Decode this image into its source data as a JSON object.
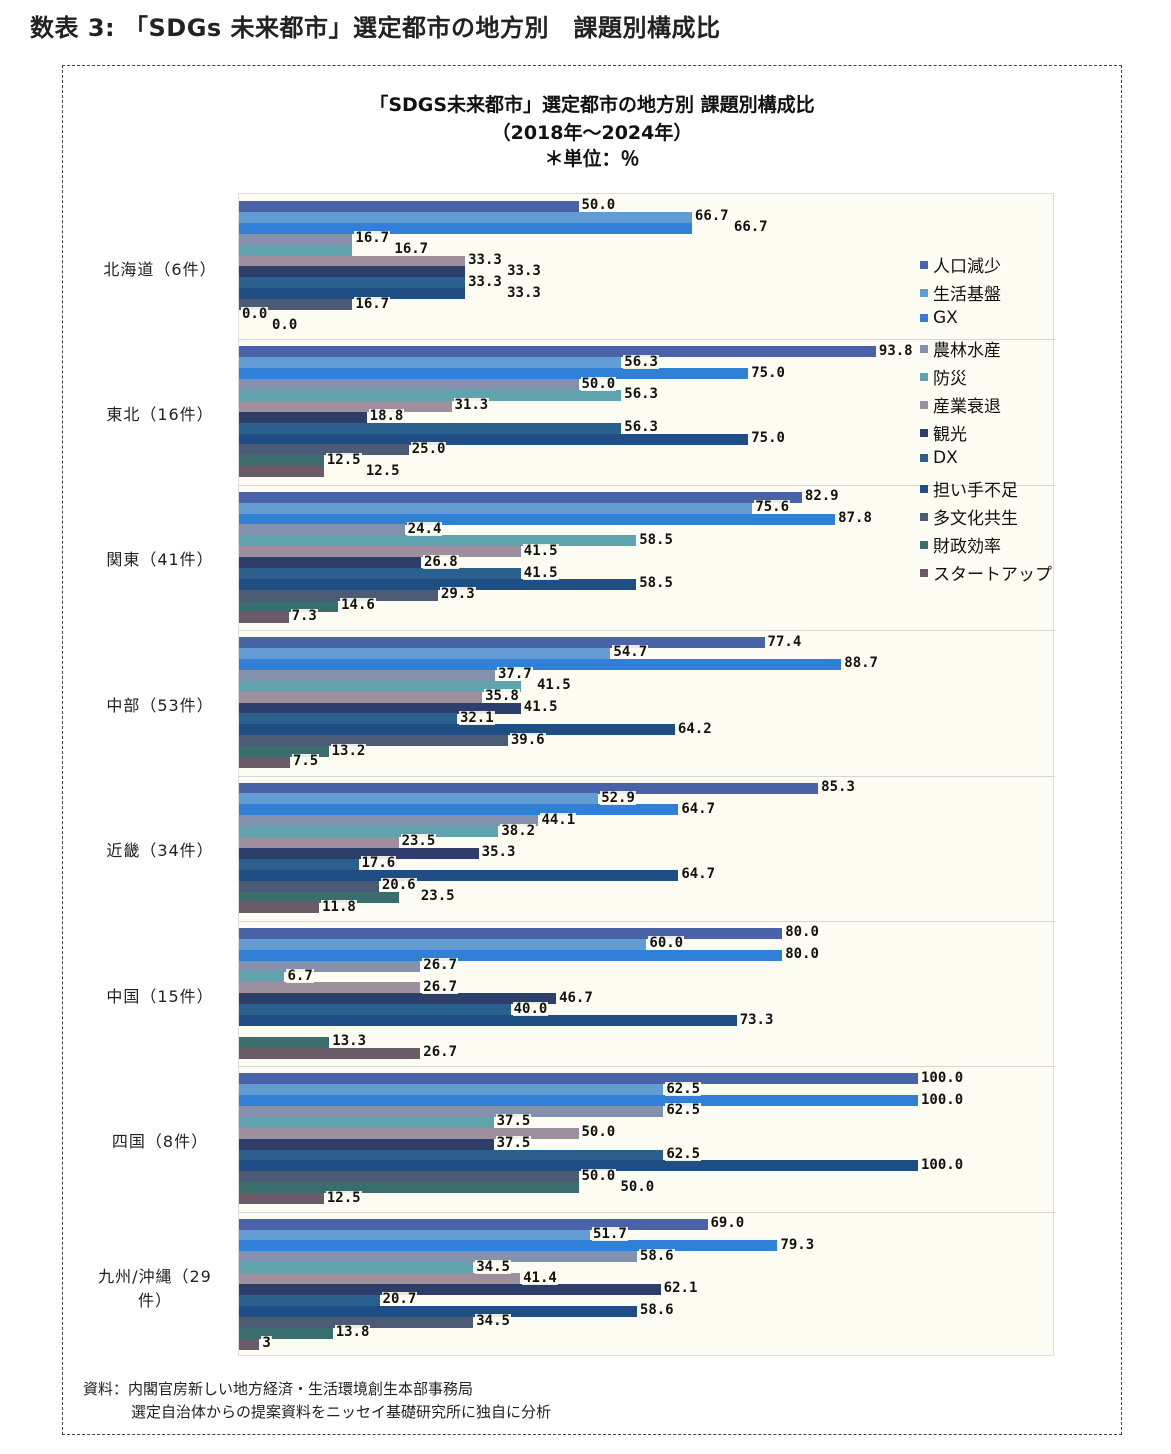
{
  "heading": "数表 3: 「SDGs 未来都市」選定都市の地方別　課題別構成比",
  "source": [
    "資料：内閣官房新しい地方経済・生活環境創生本部事務局",
    "選定自治体からの提案資料をニッセイ基礎研究所に独自に分析"
  ],
  "chart_data": {
    "type": "bar",
    "orientation": "horizontal",
    "title": "「SDGS未来都市」選定都市の地方別 課題別構成比",
    "subtitle": "（2018年～2024年）",
    "unit": "＊単位：％",
    "xlim": [
      0,
      120
    ],
    "legend_position": "right",
    "categories": [
      "北海道（6件）",
      "東北（16件）",
      "関東（41件）",
      "中部（53件）",
      "近畿（34件）",
      "中国（15件）",
      "四国（8件）",
      "九州/沖縄（29件）"
    ],
    "series": [
      {
        "name": "人口減少",
        "color": "#4a62a8",
        "values": [
          50.0,
          93.8,
          82.9,
          77.4,
          85.3,
          80.0,
          100.0,
          69.0
        ]
      },
      {
        "name": "生活基盤",
        "color": "#629cd3",
        "values": [
          66.7,
          56.3,
          75.6,
          54.7,
          52.9,
          60.0,
          62.5,
          51.7
        ]
      },
      {
        "name": "GX",
        "color": "#2f80d6",
        "values": [
          66.7,
          75.0,
          87.8,
          88.7,
          64.7,
          80.0,
          100.0,
          79.3
        ]
      },
      {
        "name": "農林水産",
        "color": "#8291ad",
        "values": [
          16.7,
          50.0,
          24.4,
          37.7,
          44.1,
          26.7,
          62.5,
          58.6
        ]
      },
      {
        "name": "防災",
        "color": "#5ea3ad",
        "values": [
          16.7,
          56.3,
          58.5,
          41.5,
          38.2,
          6.7,
          37.5,
          34.5
        ]
      },
      {
        "name": "産業衰退",
        "color": "#9d8f9e",
        "values": [
          33.3,
          31.3,
          41.5,
          35.8,
          23.5,
          26.7,
          50.0,
          41.4
        ]
      },
      {
        "name": "観光",
        "color": "#2d3e6b",
        "values": [
          33.3,
          18.8,
          26.8,
          41.5,
          35.3,
          46.7,
          37.5,
          62.1
        ]
      },
      {
        "name": "DX",
        "color": "#2b5f8e",
        "values": [
          33.3,
          56.3,
          41.5,
          32.1,
          17.6,
          40.0,
          62.5,
          20.7
        ]
      },
      {
        "name": "担い手不足",
        "color": "#1f4e84",
        "values": [
          33.3,
          75.0,
          58.5,
          64.2,
          64.7,
          73.3,
          100.0,
          58.6
        ]
      },
      {
        "name": "多文化共生",
        "color": "#4b5a75",
        "values": [
          16.7,
          25.0,
          29.3,
          39.6,
          20.6,
          0,
          50.0,
          34.5
        ]
      },
      {
        "name": "財政効率",
        "color": "#3a6e6e",
        "values": [
          0.0,
          12.5,
          14.6,
          13.2,
          23.5,
          13.3,
          50.0,
          13.8
        ]
      },
      {
        "name": "スタートアップ",
        "color": "#6b5a68",
        "values": [
          0.0,
          12.5,
          7.3,
          7.5,
          11.8,
          26.7,
          12.5,
          3
        ]
      }
    ]
  }
}
